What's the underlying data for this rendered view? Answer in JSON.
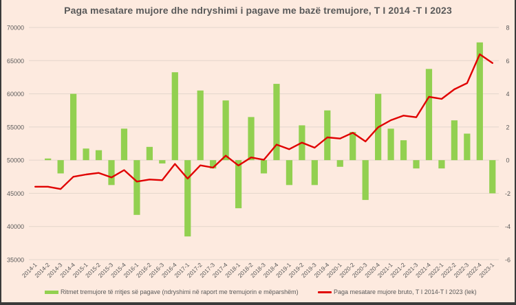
{
  "chart_data": {
    "type": "bar+line",
    "title": "Paga mesatare mujore dhe ndryshimi i pagave me bazë tremujore, T I 2014 -T I 2023",
    "categories": [
      "2014-1",
      "2014-2",
      "2014-3",
      "2014-4",
      "2015-1",
      "2015-2",
      "2015-3",
      "2015-4",
      "2016-1",
      "2016-2",
      "2016-3",
      "2016-4",
      "2017-1",
      "2017-2",
      "2017-3",
      "2017-4",
      "2018-1",
      "2018-2",
      "2018-3",
      "2018-4",
      "2019-1",
      "2019-2",
      "2019-3",
      "2019-4",
      "2020-1",
      "2020-2",
      "2020-3",
      "2020-4",
      "2021-1",
      "2021-2",
      "2021-3",
      "2021-4",
      "2022-1",
      "2022-2",
      "2022-3",
      "2022-4",
      "2023-1"
    ],
    "series": [
      {
        "name": "Ritmet tremujore të rritjes së pagave (ndryshimi në raport me tremujorin e mëparshëm)",
        "type": "bar",
        "axis": "right",
        "color": "#92d050",
        "values": [
          0,
          0.1,
          -0.8,
          4.0,
          0.7,
          0.6,
          -1.5,
          1.9,
          -3.3,
          0.8,
          -0.2,
          5.3,
          -4.6,
          4.2,
          -0.5,
          3.6,
          -2.9,
          2.6,
          -0.8,
          4.6,
          -1.5,
          2.1,
          -1.5,
          3.0,
          -0.4,
          1.7,
          -2.4,
          4.0,
          1.9,
          1.2,
          -0.5,
          5.5,
          -0.5,
          2.4,
          1.6,
          7.1,
          -2.0
        ]
      },
      {
        "name": "Paga mesatare mujore bruto, T I 2014-T I 2023 (lek)",
        "type": "line",
        "axis": "left",
        "color": "#e00000",
        "values": [
          46000,
          46000,
          45640,
          47500,
          47840,
          48080,
          47390,
          48500,
          46770,
          47080,
          46980,
          49430,
          47220,
          49220,
          48880,
          50680,
          49200,
          50410,
          50060,
          52340,
          51650,
          52650,
          51880,
          53430,
          53260,
          54130,
          52820,
          54950,
          56020,
          56710,
          56470,
          59550,
          59230,
          60680,
          61610,
          65960,
          64650
        ]
      }
    ],
    "left_axis": {
      "min": 35000,
      "max": 70000,
      "step": 5000,
      "ticks": [
        "35000",
        "40000",
        "45000",
        "50000",
        "55000",
        "60000",
        "65000",
        "70000"
      ]
    },
    "right_axis": {
      "min": -6,
      "max": 8,
      "step": 2,
      "ticks": [
        "-6",
        "-4",
        "-2",
        "0",
        "2",
        "4",
        "6",
        "8"
      ]
    },
    "grid": true,
    "legend_position": "bottom"
  },
  "legend": {
    "bar_label": "Ritmet tremujore të rritjes së pagave (ndryshimi në raport me tremujorin e mëparshëm)",
    "line_label": "Paga mesatare mujore bruto, T I 2014-T I 2023 (lek)"
  },
  "colors": {
    "background": "#fdeadf",
    "bar": "#92d050",
    "line": "#e00000",
    "grid": "#e3d5cc",
    "text": "#595959"
  }
}
